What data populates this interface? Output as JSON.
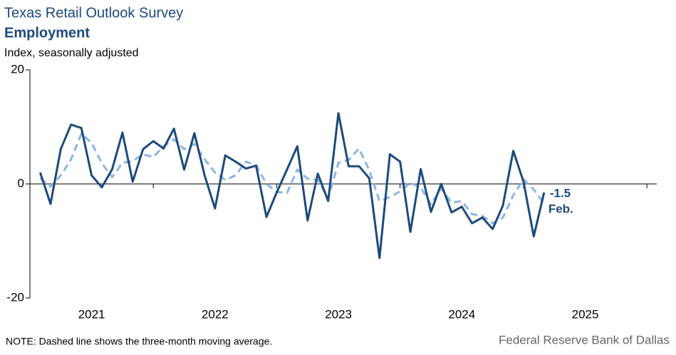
{
  "chart_data": {
    "type": "line",
    "title": "Texas Retail Outlook Survey",
    "subtitle": "Employment",
    "y_label": "Index, seasonally adjusted",
    "note": "NOTE: Dashed line shows the three-month  moving average.",
    "source": "Federal Reserve Bank of Dallas",
    "ylim": [
      -20,
      20
    ],
    "yticks": [
      -20,
      0,
      20
    ],
    "xlim": [
      2021,
      2026.08
    ],
    "xticks": [
      {
        "value": 2021.5,
        "label": "2021"
      },
      {
        "value": 2022.5,
        "label": "2022"
      },
      {
        "value": 2023.5,
        "label": "2023"
      },
      {
        "value": 2024.5,
        "label": "2024"
      },
      {
        "value": 2025.5,
        "label": "2025"
      }
    ],
    "xminor_ticks": [
      2021,
      2022,
      2023,
      2024,
      2025,
      2026
    ],
    "x": [
      2021.083,
      2021.167,
      2021.25,
      2021.333,
      2021.417,
      2021.5,
      2021.583,
      2021.667,
      2021.75,
      2021.833,
      2021.917,
      2022.0,
      2022.083,
      2022.167,
      2022.25,
      2022.333,
      2022.417,
      2022.5,
      2022.583,
      2022.667,
      2022.75,
      2022.833,
      2022.917,
      2023.0,
      2023.083,
      2023.167,
      2023.25,
      2023.333,
      2023.417,
      2023.5,
      2023.583,
      2023.667,
      2023.75,
      2023.833,
      2023.917,
      2024.0,
      2024.083,
      2024.167,
      2024.25,
      2024.333,
      2024.417,
      2024.5,
      2024.583,
      2024.667,
      2024.75,
      2024.833,
      2024.917,
      2025.0,
      2025.083,
      2025.167
    ],
    "series": [
      {
        "name": "Employment",
        "color": "#1c4a7c",
        "dashed": false,
        "values": [
          2.0,
          -3.5,
          6.1,
          10.4,
          9.8,
          1.5,
          -0.6,
          2.6,
          9.0,
          0.4,
          6.1,
          7.5,
          6.2,
          9.7,
          2.5,
          8.9,
          1.4,
          -4.3,
          5.0,
          3.9,
          2.7,
          3.2,
          -5.8,
          -1.5,
          2.5,
          6.6,
          -6.4,
          1.8,
          -3.0,
          12.4,
          3.1,
          3.1,
          1.0,
          -13.0,
          5.2,
          3.9,
          -8.4,
          2.6,
          -4.9,
          0.0,
          -5.0,
          -4.0,
          -6.9,
          -5.9,
          -7.9,
          -3.8,
          5.8,
          0.4,
          -9.2,
          -1.5
        ]
      },
      {
        "name": "Three-month moving average",
        "color": "#8fb4e3",
        "dashed": true,
        "values": [
          1.0,
          -0.5,
          1.5,
          4.3,
          8.8,
          7.2,
          3.6,
          1.2,
          3.7,
          4.0,
          5.2,
          4.7,
          6.6,
          7.8,
          6.1,
          7.0,
          4.3,
          2.0,
          0.7,
          1.5,
          3.9,
          3.3,
          0.0,
          -1.4,
          -1.6,
          2.5,
          0.9,
          0.7,
          -2.5,
          3.7,
          4.2,
          6.2,
          2.4,
          -3.0,
          -2.3,
          -1.3,
          0.2,
          -0.6,
          -3.6,
          -0.8,
          -3.3,
          -3.0,
          -5.3,
          -5.6,
          -6.9,
          -5.9,
          -2.0,
          0.8,
          -1.0,
          -3.4
        ]
      }
    ],
    "annotations": [
      {
        "text": "-1.5"
      },
      {
        "text": "Feb."
      }
    ]
  }
}
